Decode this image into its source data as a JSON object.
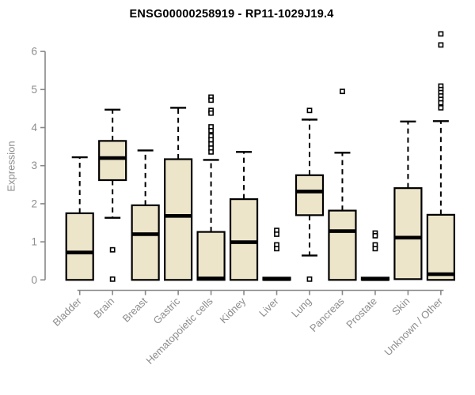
{
  "title": "ENSG00000258919 - RP11-1029J19.4",
  "colors": {
    "background": "#ffffff",
    "box_fill": "#ede5ca",
    "box_stroke": "#000000",
    "median": "#000000",
    "axis_line": "#888888",
    "axis_text": "#8c8c8c",
    "title_text": "#000000",
    "outlier_stroke": "#000000",
    "outlier_fill": "#ffffff"
  },
  "chart_data": {
    "type": "boxplot",
    "title": "ENSG00000258919 - RP11-1029J19.4",
    "xlabel": "",
    "ylabel": "Expression",
    "ylim": [
      0,
      6.6
    ],
    "yticks": [
      0,
      1,
      2,
      3,
      4,
      5,
      6
    ],
    "grid": false,
    "legend": "none",
    "categories": [
      "Bladder",
      "Brain",
      "Breast",
      "Gastric",
      "Hematopoietic cells",
      "Kidney",
      "Liver",
      "Lung",
      "Pancreas",
      "Prostate",
      "Skin",
      "Unknown / Other"
    ],
    "series": [
      {
        "name": "Bladder",
        "whisker_low": 0,
        "q1": 0,
        "median": 0.72,
        "q3": 1.75,
        "whisker_high": 3.22,
        "outliers": []
      },
      {
        "name": "Brain",
        "whisker_low": 1.63,
        "q1": 2.62,
        "median": 3.2,
        "q3": 3.65,
        "whisker_high": 4.47,
        "outliers": [
          0.79,
          0.02
        ]
      },
      {
        "name": "Breast",
        "whisker_low": 0,
        "q1": 0,
        "median": 1.2,
        "q3": 1.96,
        "whisker_high": 3.4,
        "outliers": []
      },
      {
        "name": "Gastric",
        "whisker_low": 0,
        "q1": 0,
        "median": 1.68,
        "q3": 3.17,
        "whisker_high": 4.52,
        "outliers": []
      },
      {
        "name": "Hematopoietic cells",
        "whisker_low": 0,
        "q1": 0,
        "median": 0.04,
        "q3": 1.26,
        "whisker_high": 3.15,
        "outliers": [
          4.8,
          4.72,
          4.45,
          4.38,
          4.02,
          3.92,
          3.78,
          3.68,
          3.57,
          3.46,
          3.36
        ]
      },
      {
        "name": "Kidney",
        "whisker_low": 0,
        "q1": 0,
        "median": 0.99,
        "q3": 2.12,
        "whisker_high": 3.36,
        "outliers": []
      },
      {
        "name": "Liver",
        "whisker_low": 0,
        "q1": 0,
        "median": 0.02,
        "q3": 0.06,
        "whisker_high": 0.06,
        "outliers": [
          1.3,
          1.2,
          0.92,
          0.82
        ]
      },
      {
        "name": "Lung",
        "whisker_low": 0.64,
        "q1": 1.7,
        "median": 2.32,
        "q3": 2.75,
        "whisker_high": 4.21,
        "outliers": [
          4.45,
          0.02
        ]
      },
      {
        "name": "Pancreas",
        "whisker_low": 0,
        "q1": 0,
        "median": 1.28,
        "q3": 1.82,
        "whisker_high": 3.34,
        "outliers": [
          4.95
        ]
      },
      {
        "name": "Prostate",
        "whisker_low": 0,
        "q1": 0,
        "median": 0.02,
        "q3": 0.06,
        "whisker_high": 0.06,
        "outliers": [
          1.23,
          1.16,
          0.92,
          0.82
        ]
      },
      {
        "name": "Skin",
        "whisker_low": 0.02,
        "q1": 0.02,
        "median": 1.11,
        "q3": 2.41,
        "whisker_high": 4.16,
        "outliers": []
      },
      {
        "name": "Unknown / Other",
        "whisker_low": 0,
        "q1": 0,
        "median": 0.15,
        "q3": 1.71,
        "whisker_high": 4.17,
        "outliers": [
          6.46,
          6.17,
          5.09,
          5.0,
          4.92,
          4.83,
          4.74,
          4.65,
          4.52
        ]
      }
    ]
  }
}
